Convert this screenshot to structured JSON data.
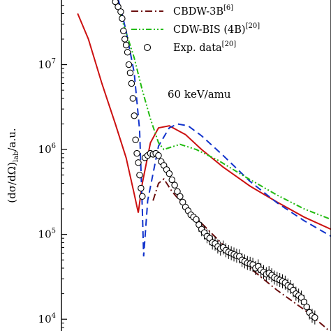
{
  "chart_data": {
    "type": "line",
    "title": "",
    "xlabel": "",
    "ylabel": "(dσ/dΩ)_lab/a.u.",
    "ylabel_parts": {
      "open": "(dσ/dΩ)",
      "sub": "lab",
      "close": "/a.u."
    },
    "yscale": "log",
    "ylim": [
      7000,
      60000000
    ],
    "xlim": [
      0,
      1
    ],
    "grid": false,
    "legend_location": "top-right",
    "annotation": "60 keV/amu",
    "y_ticks": [
      {
        "value": 10000,
        "base": "10",
        "exp": "4"
      },
      {
        "value": 100000,
        "base": "10",
        "exp": "5"
      },
      {
        "value": 1000000,
        "base": "10",
        "exp": "6"
      },
      {
        "value": 10000000,
        "base": "10",
        "exp": "7"
      }
    ],
    "legend": [
      {
        "series": "cbdw3b",
        "label": "CBDW-3B",
        "sup": "[6]"
      },
      {
        "series": "cdwbis",
        "label": "CDW-BIS (4B)",
        "sup": "[20]"
      },
      {
        "series": "exp",
        "label": "Exp. data",
        "sup": "[20]"
      }
    ],
    "series": [
      {
        "id": "red",
        "color": "#cc1111",
        "style": "solid",
        "points": [
          [
            0.06,
            40000000
          ],
          [
            0.1,
            20000000
          ],
          [
            0.15,
            6000000
          ],
          [
            0.2,
            2000000
          ],
          [
            0.24,
            800000
          ],
          [
            0.27,
            300000
          ],
          [
            0.285,
            180000
          ],
          [
            0.3,
            400000
          ],
          [
            0.33,
            1200000
          ],
          [
            0.36,
            1800000
          ],
          [
            0.4,
            1900000
          ],
          [
            0.46,
            1500000
          ],
          [
            0.52,
            1000000
          ],
          [
            0.6,
            620000
          ],
          [
            0.7,
            370000
          ],
          [
            0.8,
            240000
          ],
          [
            0.9,
            160000
          ],
          [
            1.0,
            115000
          ]
        ]
      },
      {
        "id": "blue",
        "color": "#1133cc",
        "style": "dashed",
        "points": [
          [
            0.21,
            60000000
          ],
          [
            0.24,
            25000000
          ],
          [
            0.27,
            8000000
          ],
          [
            0.29,
            1700000
          ],
          [
            0.3,
            200000
          ],
          [
            0.305,
            55000
          ],
          [
            0.32,
            250000
          ],
          [
            0.36,
            1100000
          ],
          [
            0.4,
            1800000
          ],
          [
            0.43,
            2000000
          ],
          [
            0.47,
            1900000
          ],
          [
            0.52,
            1450000
          ],
          [
            0.6,
            850000
          ],
          [
            0.7,
            420000
          ],
          [
            0.8,
            235000
          ],
          [
            0.9,
            145000
          ],
          [
            1.0,
            95000
          ]
        ]
      },
      {
        "id": "cdwbis",
        "color": "#22bb11",
        "style": "dashdotdot",
        "points": [
          [
            0.2,
            60000000
          ],
          [
            0.23,
            30000000
          ],
          [
            0.27,
            12000000
          ],
          [
            0.3,
            5000000
          ],
          [
            0.33,
            2300000
          ],
          [
            0.36,
            1200000
          ],
          [
            0.38,
            1000000
          ],
          [
            0.4,
            1050000
          ],
          [
            0.44,
            1150000
          ],
          [
            0.5,
            1000000
          ],
          [
            0.58,
            750000
          ],
          [
            0.68,
            480000
          ],
          [
            0.8,
            290000
          ],
          [
            0.9,
            200000
          ],
          [
            1.0,
            150000
          ]
        ]
      },
      {
        "id": "cbdw3b",
        "color": "#6b0f0f",
        "style": "dashdot",
        "points": [
          [
            0.34,
            250000
          ],
          [
            0.36,
            400000
          ],
          [
            0.38,
            450000
          ],
          [
            0.41,
            320000
          ],
          [
            0.46,
            210000
          ],
          [
            0.52,
            135000
          ],
          [
            0.6,
            75000
          ],
          [
            0.7,
            40000
          ],
          [
            0.8,
            22000
          ],
          [
            0.9,
            13000
          ],
          [
            0.97,
            8500
          ],
          [
            1.0,
            7000
          ]
        ]
      }
    ],
    "experiment": {
      "marker": "open-circle",
      "points": [
        [
          0.2,
          55000000
        ],
        [
          0.21,
          48000000
        ],
        [
          0.22,
          42000000
        ],
        [
          0.225,
          35000000
        ],
        [
          0.23,
          25000000
        ],
        [
          0.235,
          20000000
        ],
        [
          0.24,
          17000000
        ],
        [
          0.245,
          14000000
        ],
        [
          0.25,
          10000000
        ],
        [
          0.255,
          8000000
        ],
        [
          0.26,
          6000000
        ],
        [
          0.265,
          4000000
        ],
        [
          0.27,
          2500000
        ],
        [
          0.275,
          1300000
        ],
        [
          0.28,
          900000
        ],
        [
          0.285,
          700000
        ],
        [
          0.29,
          500000
        ],
        [
          0.295,
          350000
        ],
        [
          0.3,
          280000
        ],
        [
          0.31,
          800000
        ],
        [
          0.32,
          850000
        ],
        [
          0.33,
          900000
        ],
        [
          0.34,
          880000
        ],
        [
          0.35,
          900000
        ],
        [
          0.36,
          850000
        ],
        [
          0.37,
          720000
        ],
        [
          0.38,
          650000
        ],
        [
          0.39,
          580000
        ],
        [
          0.4,
          520000
        ],
        [
          0.41,
          440000
        ],
        [
          0.42,
          380000
        ],
        [
          0.43,
          320000
        ],
        [
          0.44,
          280000
        ],
        [
          0.45,
          240000
        ],
        [
          0.46,
          210000
        ],
        [
          0.47,
          190000
        ],
        [
          0.48,
          170000
        ],
        [
          0.49,
          160000
        ],
        [
          0.5,
          150000
        ],
        [
          0.51,
          130000
        ],
        [
          0.52,
          115000
        ],
        [
          0.53,
          105000
        ],
        [
          0.54,
          95000
        ],
        [
          0.55,
          90000
        ],
        [
          0.56,
          80000
        ],
        [
          0.57,
          78000
        ],
        [
          0.58,
          72000
        ],
        [
          0.59,
          68000
        ],
        [
          0.6,
          70000
        ],
        [
          0.61,
          65000
        ],
        [
          0.62,
          62000
        ],
        [
          0.63,
          60000
        ],
        [
          0.64,
          58000
        ],
        [
          0.65,
          56000
        ],
        [
          0.66,
          55000
        ],
        [
          0.67,
          50000
        ],
        [
          0.68,
          48000
        ],
        [
          0.69,
          46000
        ],
        [
          0.7,
          45000
        ],
        [
          0.71,
          44000
        ],
        [
          0.72,
          40000
        ],
        [
          0.73,
          42000
        ],
        [
          0.74,
          38000
        ],
        [
          0.75,
          36000
        ],
        [
          0.76,
          34000
        ],
        [
          0.77,
          35000
        ],
        [
          0.78,
          33000
        ],
        [
          0.79,
          31000
        ],
        [
          0.8,
          30000
        ],
        [
          0.81,
          29000
        ],
        [
          0.82,
          28000
        ],
        [
          0.83,
          27000
        ],
        [
          0.84,
          25000
        ],
        [
          0.85,
          24000
        ],
        [
          0.86,
          22000
        ],
        [
          0.87,
          20000
        ],
        [
          0.88,
          19000
        ],
        [
          0.89,
          18000
        ],
        [
          0.9,
          16000
        ],
        [
          0.91,
          14000
        ],
        [
          0.92,
          12000
        ],
        [
          0.93,
          11000
        ],
        [
          0.94,
          10500
        ]
      ]
    }
  }
}
